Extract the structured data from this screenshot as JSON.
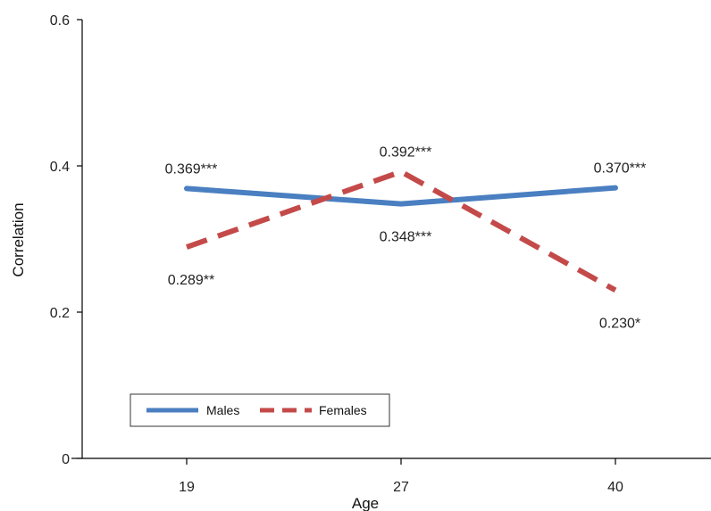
{
  "chart_data": {
    "type": "line",
    "xlabel": "Age",
    "ylabel": "Correlation",
    "categories": [
      "19",
      "27",
      "40"
    ],
    "ylim": [
      0,
      0.6
    ],
    "yticks": [
      "0",
      "0.2",
      "0.4",
      "0.6"
    ],
    "grid": false,
    "legend_position": "bottom-left",
    "series": [
      {
        "name": "Males",
        "values": [
          0.369,
          0.348,
          0.37
        ],
        "labels": [
          "0.369***",
          "0.348***",
          "0.370***"
        ],
        "color": "#4a7fc1",
        "style": "solid"
      },
      {
        "name": "Females",
        "values": [
          0.289,
          0.392,
          0.23
        ],
        "labels": [
          "0.289**",
          "0.392***",
          "0.230*"
        ],
        "color": "#c44a4a",
        "style": "dashed"
      }
    ]
  }
}
